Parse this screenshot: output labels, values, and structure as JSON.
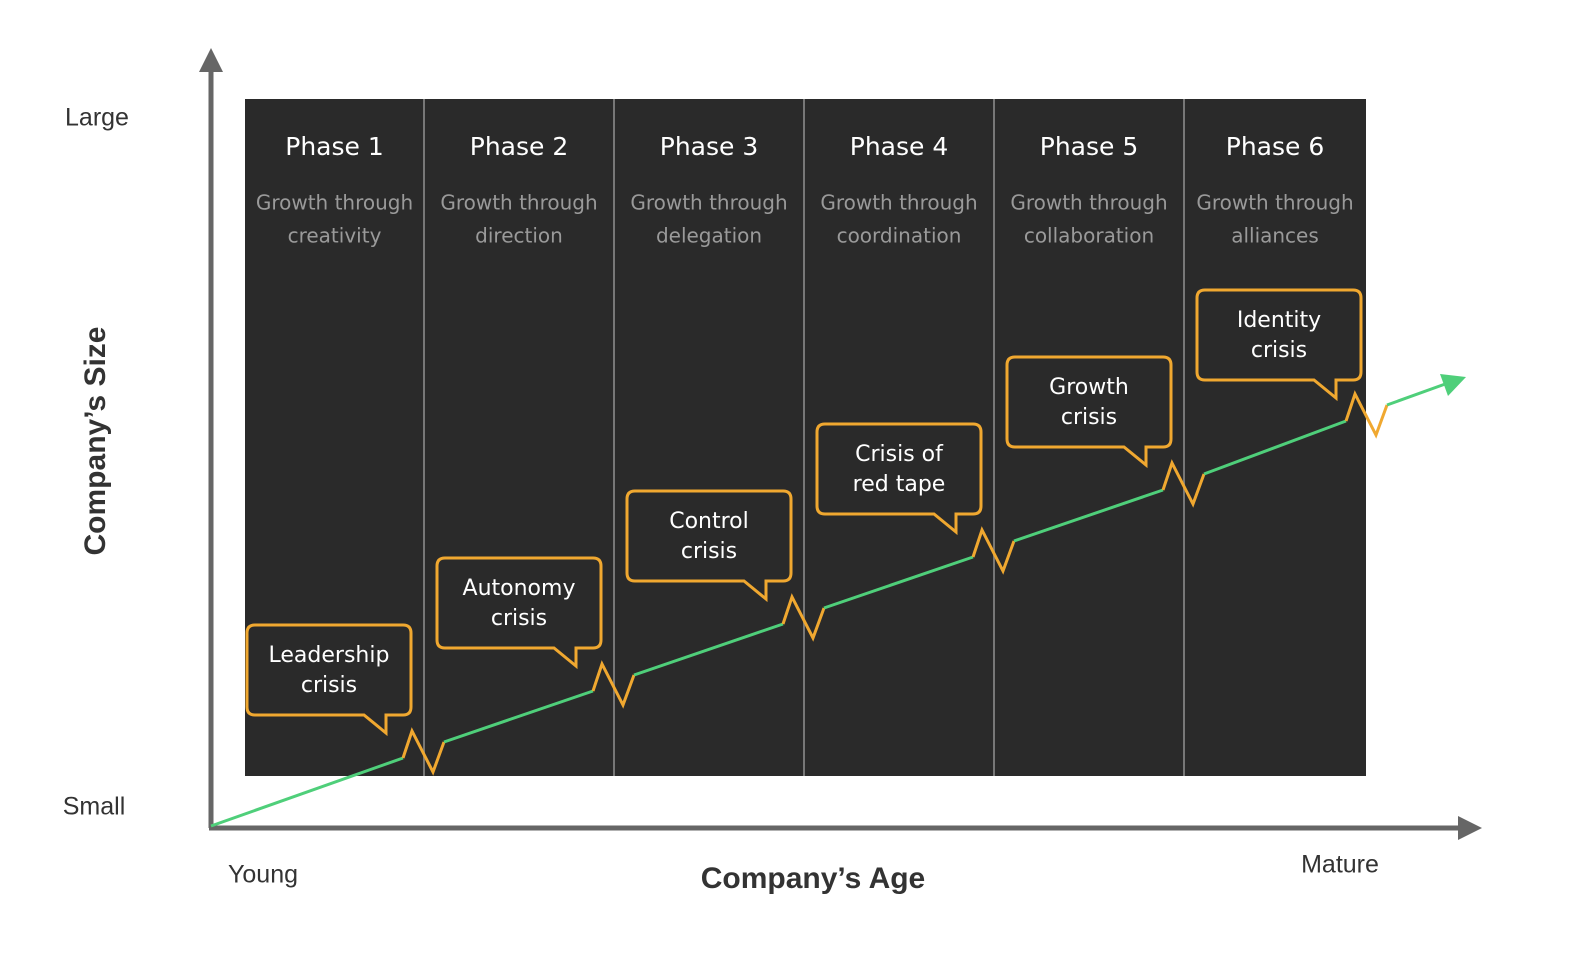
{
  "axes": {
    "y_label": "Company’s Size",
    "y_top": "Large",
    "y_bottom": "Small",
    "x_label": "Company’s Age",
    "x_left": "Young",
    "x_right": "Mature"
  },
  "phases": [
    {
      "title": "Phase 1",
      "subtitle": [
        "Growth through",
        "creativity"
      ],
      "crisis": [
        "Leadership",
        "crisis"
      ]
    },
    {
      "title": "Phase 2",
      "subtitle": [
        "Growth through",
        "direction"
      ],
      "crisis": [
        "Autonomy",
        "crisis"
      ]
    },
    {
      "title": "Phase 3",
      "subtitle": [
        "Growth through",
        "delegation"
      ],
      "crisis": [
        "Control",
        "crisis"
      ]
    },
    {
      "title": "Phase 4",
      "subtitle": [
        "Growth through",
        "coordination"
      ],
      "crisis": [
        "Crisis of",
        "red tape"
      ]
    },
    {
      "title": "Phase 5",
      "subtitle": [
        "Growth through",
        "collaboration"
      ],
      "crisis": [
        "Growth",
        "crisis"
      ]
    },
    {
      "title": "Phase 6",
      "subtitle": [
        "Growth through",
        "alliances"
      ],
      "crisis": [
        "Identity",
        "crisis"
      ]
    }
  ]
}
